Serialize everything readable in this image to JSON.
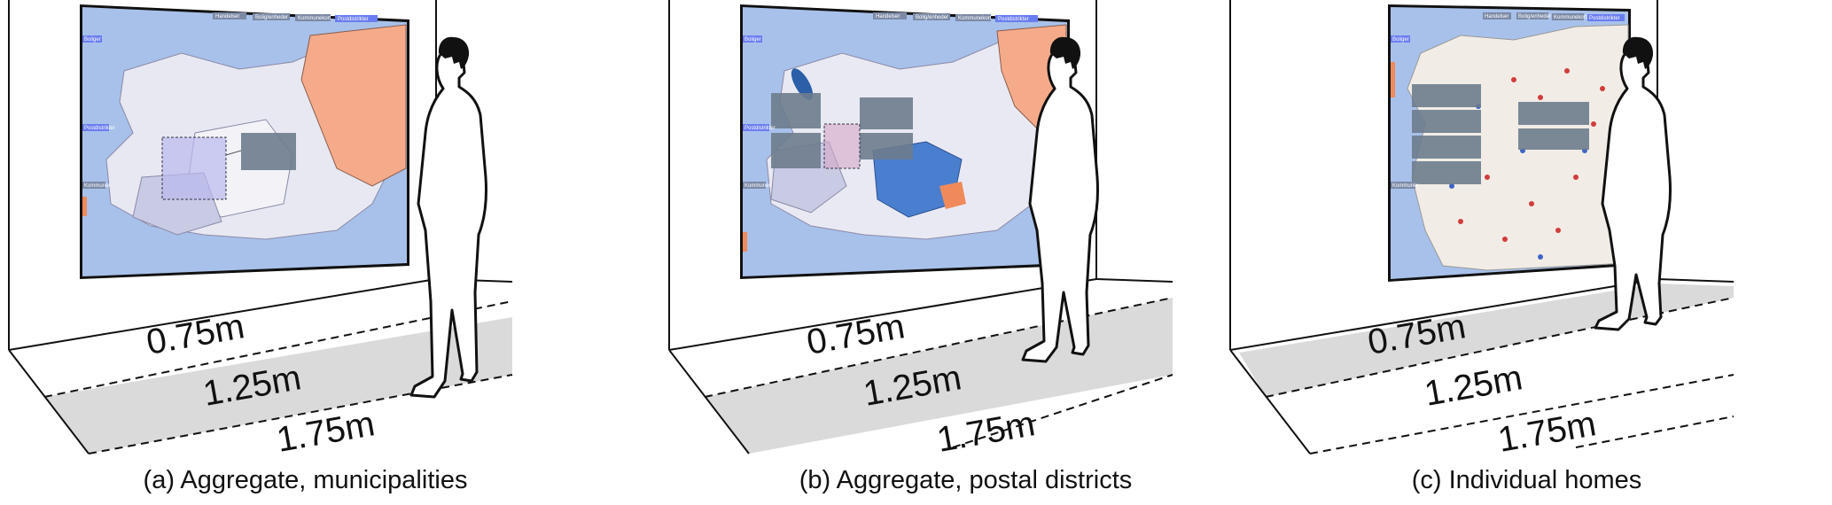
{
  "panels": [
    {
      "caption": "(a) Aggregate, municipalities",
      "distances": [
        "0.75m",
        "1.25m",
        "1.75m"
      ],
      "shaded_zone": "1.75m",
      "map_level": "municipalities",
      "map_buttons": [
        "Handelser",
        "Bolig/enheder",
        "Kommunekort",
        "Postdistrikter",
        "Kommuner"
      ],
      "map_side_buttons": [
        "Boliger",
        "Postdistrikter",
        "Kommuner"
      ]
    },
    {
      "caption": "(b) Aggregate, postal districts",
      "distances": [
        "0.75m",
        "1.25m",
        "1.75m"
      ],
      "shaded_zone": "1.25m",
      "map_level": "postal districts",
      "map_buttons": [
        "Handelser",
        "Bolig/enheder",
        "Kommunekort",
        "Postdistrikter",
        "Kommuner"
      ],
      "map_side_buttons": [
        "Boliger",
        "Postdistrikter",
        "Kommuner"
      ]
    },
    {
      "caption": "(c) Individual homes",
      "distances": [
        "0.75m",
        "1.25m",
        "1.75m"
      ],
      "shaded_zone": "0.75m",
      "map_level": "individual homes",
      "map_buttons": [
        "Handelser",
        "Bolig/enheder",
        "Kommunekort",
        "Postdistrikter",
        "Kommuner"
      ],
      "map_side_buttons": [
        "Boliger",
        "Postdistrikter",
        "Kommuner"
      ]
    }
  ],
  "colors": {
    "sea": "#a8c1ea",
    "land": "#e7e8f2",
    "hot": "#f5ab8a",
    "cool": "#4a7fcf",
    "floor_shade": "#dadada",
    "ink": "#111111"
  }
}
